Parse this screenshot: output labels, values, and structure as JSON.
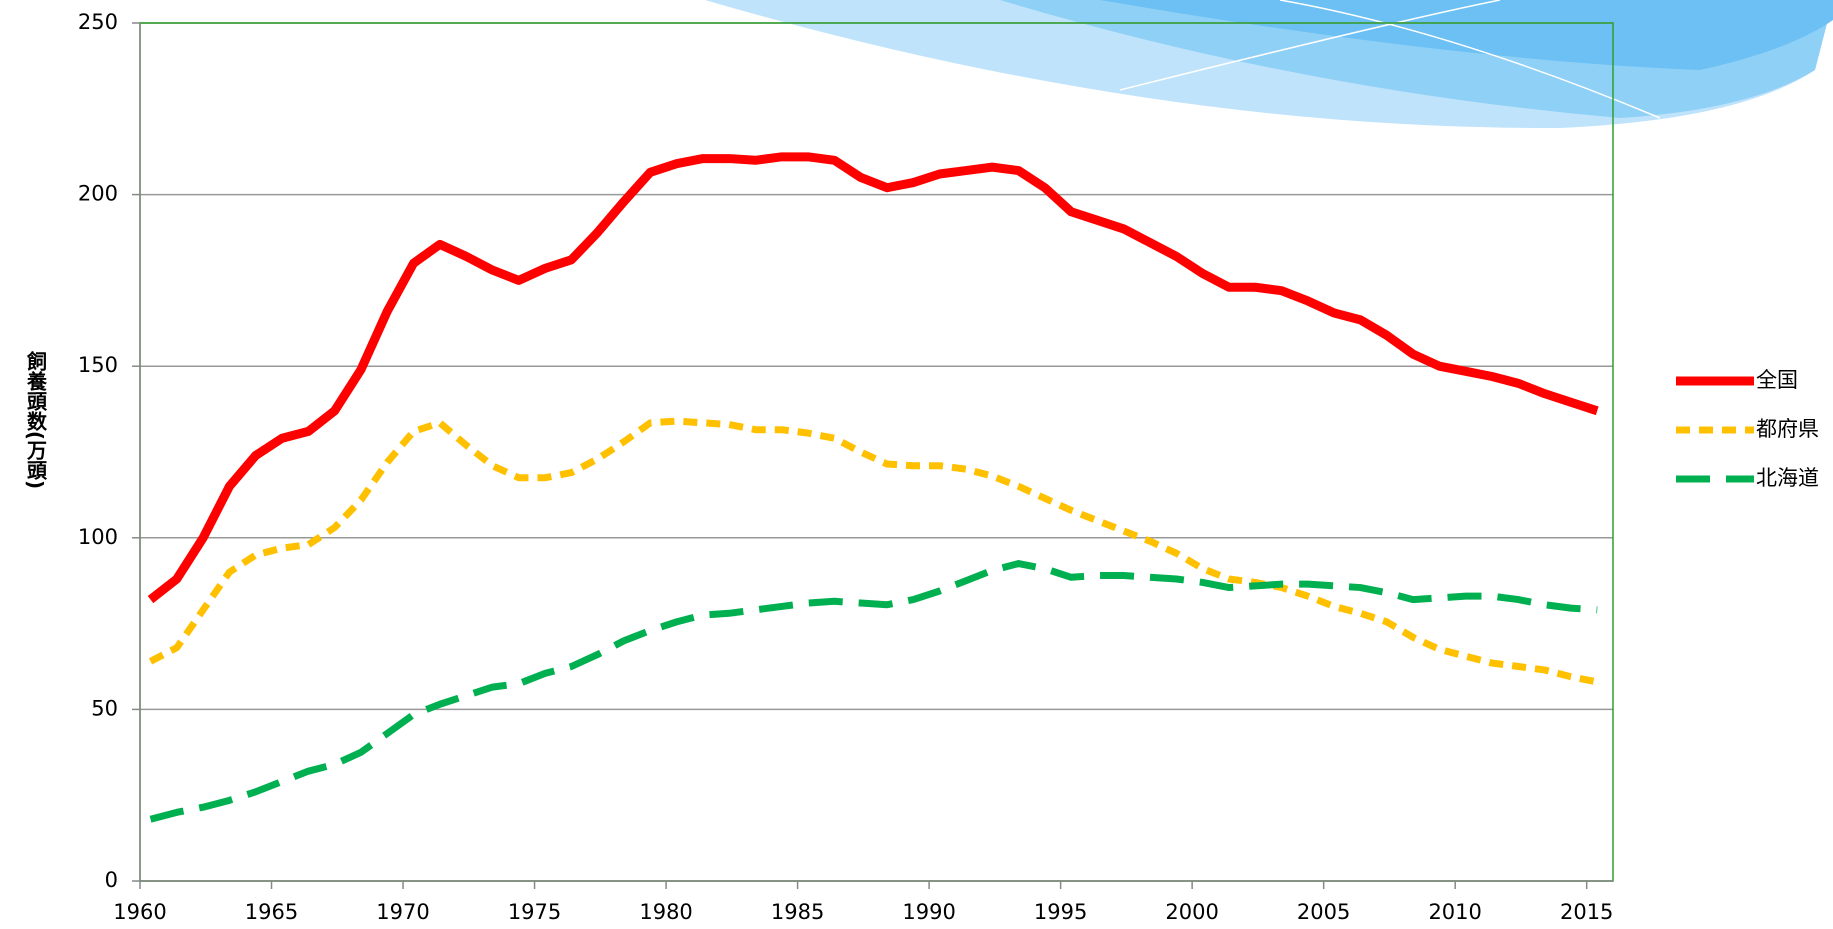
{
  "chart_data": {
    "type": "line",
    "ylabel": "飼養頭数(万頭)",
    "x": [
      1960,
      1961,
      1962,
      1963,
      1964,
      1965,
      1966,
      1967,
      1968,
      1969,
      1970,
      1971,
      1972,
      1973,
      1974,
      1975,
      1976,
      1977,
      1978,
      1979,
      1980,
      1981,
      1982,
      1983,
      1984,
      1985,
      1986,
      1987,
      1988,
      1989,
      1990,
      1991,
      1992,
      1993,
      1994,
      1995,
      1996,
      1997,
      1998,
      1999,
      2000,
      2001,
      2002,
      2003,
      2004,
      2005,
      2006,
      2007,
      2008,
      2009,
      2010,
      2011,
      2012,
      2013,
      2014,
      2015
    ],
    "series": [
      {
        "name": "全国",
        "color": "#ff0000",
        "dash": "solid",
        "values": [
          82,
          88,
          100,
          115,
          124,
          129,
          131,
          137,
          149,
          166,
          180,
          185.5,
          182,
          178,
          175,
          178.5,
          181,
          189,
          198,
          206.5,
          209,
          210.5,
          210.5,
          210,
          211,
          211,
          210,
          205,
          202,
          203.5,
          206,
          207,
          208,
          207,
          202,
          195,
          192.5,
          190,
          186,
          182,
          177,
          173,
          173,
          172,
          169,
          165.5,
          163.5,
          159,
          153.5,
          150,
          148.5,
          147,
          145,
          142,
          139.5,
          137
        ]
      },
      {
        "name": "都府県",
        "color": "#ffc000",
        "dash": "short",
        "values": [
          64,
          68,
          79,
          90,
          95,
          97,
          98,
          103,
          111,
          122,
          131,
          133.5,
          127,
          121,
          117.5,
          117.5,
          119,
          123,
          128,
          133.5,
          134,
          133.5,
          133,
          131.5,
          131.5,
          130.5,
          129,
          125,
          121.5,
          121,
          121,
          120,
          118,
          115,
          111.5,
          108,
          105,
          102,
          99,
          95.5,
          91,
          88,
          87,
          85.5,
          83,
          80,
          78,
          75.5,
          71,
          67.5,
          65.5,
          63.5,
          62.5,
          61.5,
          59.5,
          58
        ]
      },
      {
        "name": "北海道",
        "color": "#00b050",
        "dash": "long",
        "values": [
          18,
          20,
          21.5,
          23.5,
          26,
          29,
          32,
          34,
          37.5,
          43,
          48.5,
          51.5,
          54,
          56.5,
          57.5,
          60.5,
          62.5,
          66,
          70,
          73,
          75.5,
          77.5,
          78,
          79,
          80,
          81,
          81.5,
          81,
          80.5,
          82,
          84.5,
          87.5,
          90.5,
          92.5,
          91,
          88.5,
          89,
          89,
          88.5,
          88,
          87,
          85.5,
          86,
          86.5,
          86.5,
          86,
          85.5,
          84,
          82,
          82.5,
          83,
          83,
          82,
          80.5,
          79.5,
          79
        ]
      }
    ],
    "xlim": [
      1959.6,
      2015.6
    ],
    "xticks": [
      1960,
      1965,
      1970,
      1975,
      1980,
      1985,
      1990,
      1995,
      2000,
      2005,
      2010,
      2015
    ],
    "ylim": [
      0,
      250
    ],
    "yticks": [
      0,
      50,
      100,
      150,
      200,
      250
    ],
    "grid": true,
    "legend": "right"
  }
}
